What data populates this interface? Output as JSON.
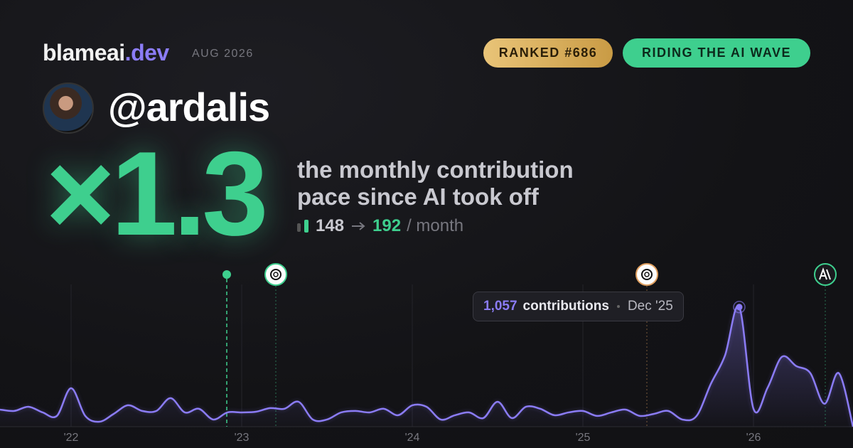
{
  "brand": {
    "name": "blameai",
    "tld": ".dev"
  },
  "date": "AUG 2026",
  "badges": [
    "RANKED #686",
    "RIDING THE AI WAVE"
  ],
  "user": {
    "handle": "@ardalis"
  },
  "multiplier": "×1.3",
  "description": [
    "the monthly contribution",
    "pace since AI took off"
  ],
  "pace": {
    "before": "148",
    "after": "192",
    "unit": "/ month"
  },
  "tooltip": {
    "count": "1,057",
    "unit": "contributions",
    "month": "Dec '25"
  },
  "chart_data": {
    "type": "line",
    "categories": [
      null,
      null,
      null,
      null,
      null,
      "'22",
      null,
      null,
      null,
      null,
      null,
      null,
      null,
      null,
      null,
      null,
      null,
      "'23",
      null,
      null,
      null,
      null,
      null,
      null,
      null,
      null,
      null,
      null,
      null,
      "'24",
      null,
      null,
      null,
      null,
      null,
      null,
      null,
      null,
      null,
      null,
      null,
      "'25",
      null,
      null,
      null,
      null,
      null,
      null,
      null,
      null,
      null,
      null,
      null,
      "'26",
      null,
      null,
      null,
      null,
      null,
      null,
      null
    ],
    "series": [
      {
        "color": "#8b7cf6",
        "values": [
          151,
          139,
          176,
          126,
          95,
          340,
          95,
          44,
          113,
          189,
          139,
          139,
          252,
          126,
          158,
          63,
          126,
          126,
          132,
          164,
          158,
          220,
          63,
          63,
          126,
          139,
          126,
          158,
          101,
          189,
          176,
          63,
          101,
          126,
          76,
          220,
          76,
          176,
          158,
          101,
          126,
          139,
          95,
          126,
          151,
          95,
          113,
          139,
          63,
          95,
          378,
          630,
          1057,
          158,
          346,
          617,
          536,
          473,
          202,
          473,
          0
        ]
      }
    ],
    "ylim": [
      0,
      1200
    ]
  }
}
